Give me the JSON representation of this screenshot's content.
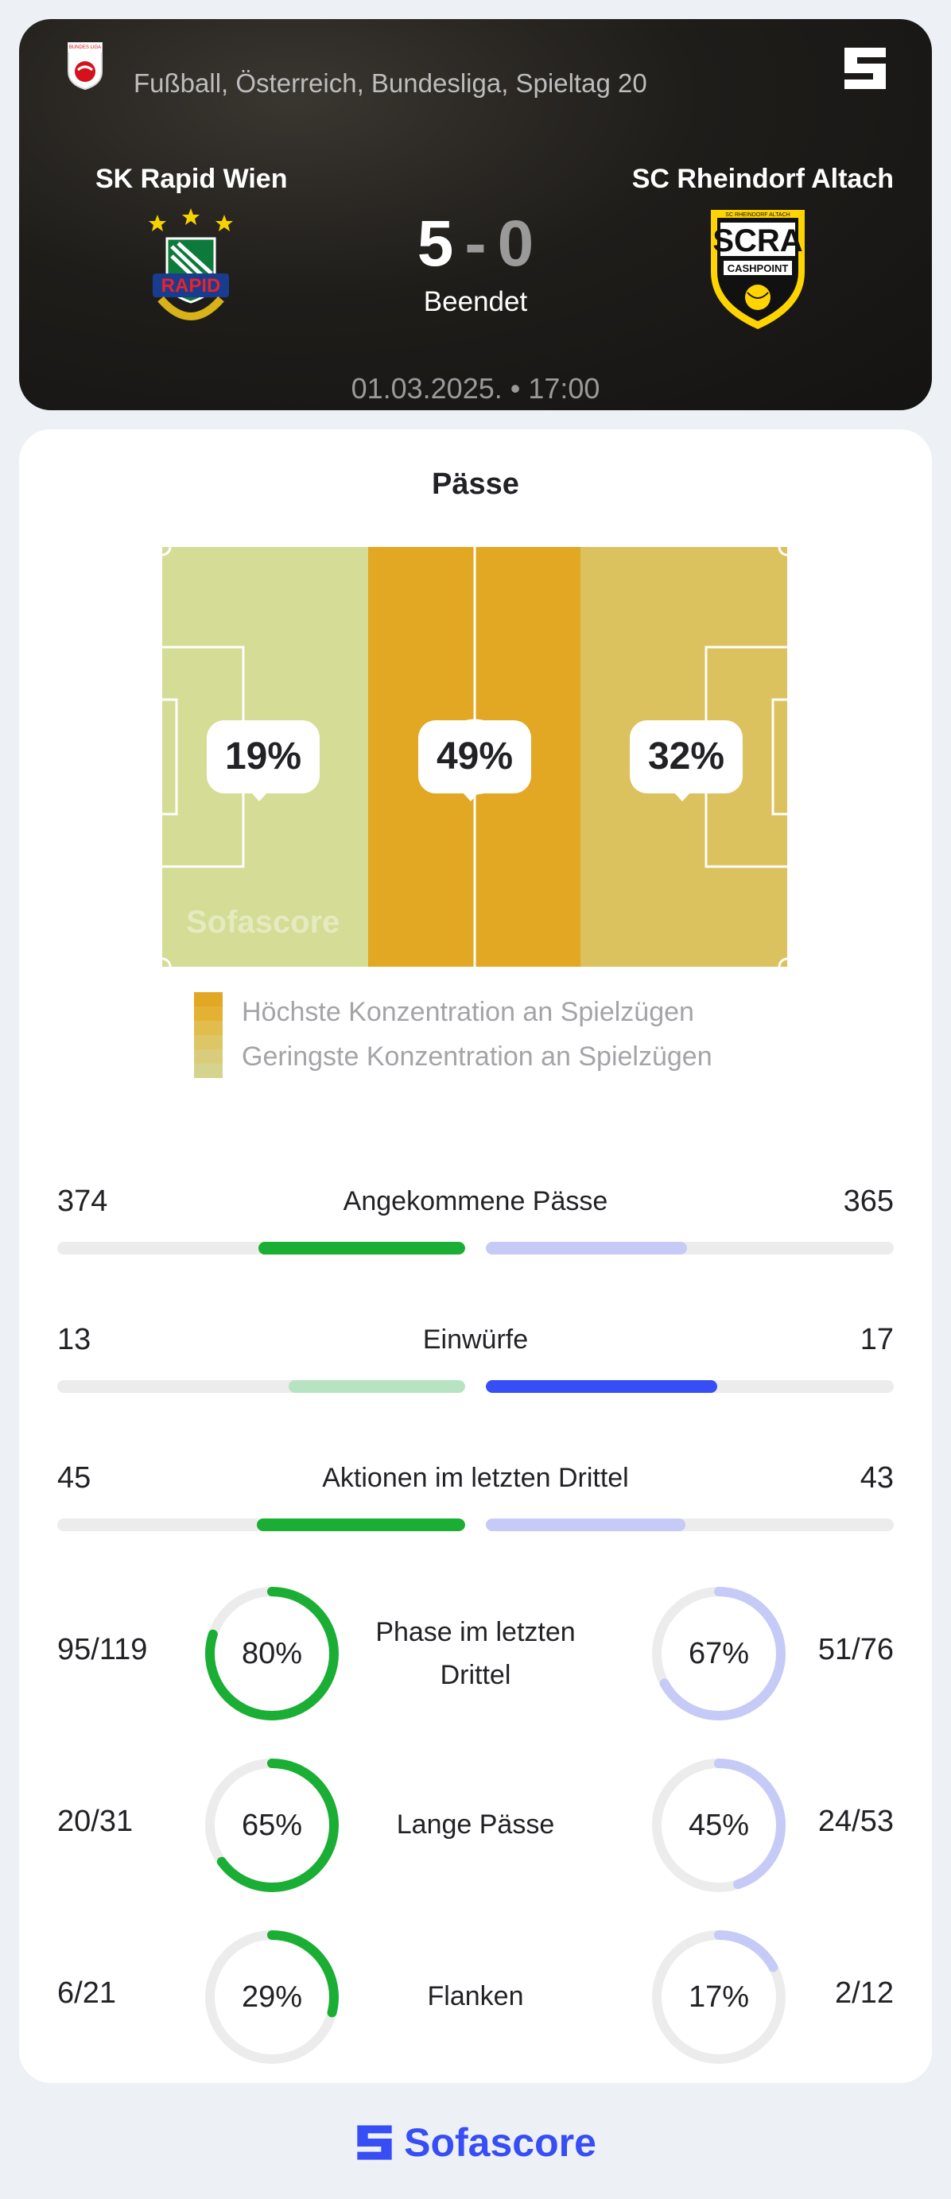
{
  "header": {
    "breadcrumb": "Fußball, Österreich, Bundesliga, Spieltag 20",
    "league_logo_text": "BUNDES LIGA",
    "home_team": "SK Rapid Wien",
    "away_team": "SC Rheindorf Altach",
    "home_logo_text": "RAPID",
    "away_logo_text": "SCRA",
    "away_logo_sub": "CASHPOINT",
    "away_logo_top": "SC RHEINDORF ALTACH",
    "home_score": "5",
    "score_separator": "-",
    "away_score": "0",
    "status": "Beendet",
    "datetime": "01.03.2025. • 17:00"
  },
  "passes": {
    "title": "Pässe",
    "zones": [
      {
        "label": "19%",
        "value": 19,
        "color": "#d4dc95"
      },
      {
        "label": "49%",
        "value": 49,
        "color": "#e2a723"
      },
      {
        "label": "32%",
        "value": 32,
        "color": "#dbc25f"
      }
    ],
    "watermark": "Sofascore",
    "legend_high": "Höchste Konzentration an Spielzügen",
    "legend_low": "Geringste Konzentration an Spielzügen",
    "legend_colors": [
      "#e2a723",
      "#e4b233",
      "#e0bd4c",
      "#dcc666",
      "#d9cd7c",
      "#d5d48f"
    ]
  },
  "bar_stats": [
    {
      "label": "Angekommene Pässe",
      "home": "374",
      "away": "365",
      "home_num": 374,
      "away_num": 365,
      "home_color": "#1aae34",
      "away_color": "#c5cbf6"
    },
    {
      "label": "Einwürfe",
      "home": "13",
      "away": "17",
      "home_num": 13,
      "away_num": 17,
      "home_color": "#b8e3c2",
      "away_color": "#374df5"
    },
    {
      "label": "Aktionen im letzten Drittel",
      "home": "45",
      "away": "43",
      "home_num": 45,
      "away_num": 43,
      "home_color": "#1aae34",
      "away_color": "#c5cbf6"
    }
  ],
  "ring_stats": [
    {
      "label": "Phase im letzten Drittel",
      "home_frac": "95/119",
      "home_pct": "80%",
      "home_val": 80,
      "away_frac": "51/76",
      "away_pct": "67%",
      "away_val": 67,
      "home_color": "#1aae34",
      "away_color": "#c5cbf6"
    },
    {
      "label": "Lange Pässe",
      "home_frac": "20/31",
      "home_pct": "65%",
      "home_val": 65,
      "away_frac": "24/53",
      "away_pct": "45%",
      "away_val": 45,
      "home_color": "#1aae34",
      "away_color": "#c5cbf6"
    },
    {
      "label": "Flanken",
      "home_frac": "6/21",
      "home_pct": "29%",
      "home_val": 29,
      "away_frac": "2/12",
      "away_pct": "17%",
      "away_val": 17,
      "home_color": "#1aae34",
      "away_color": "#c5cbf6"
    }
  ],
  "footer": {
    "brand": "Sofascore"
  },
  "colors": {
    "accent": "#374df5",
    "home": "#1aae34",
    "away_light": "#c5cbf6",
    "track": "#ececec"
  }
}
